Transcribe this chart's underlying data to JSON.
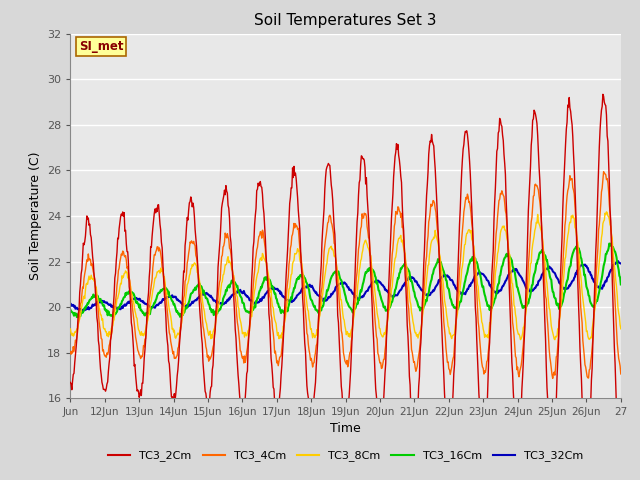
{
  "title": "Soil Temperatures Set 3",
  "xlabel": "Time",
  "ylabel": "Soil Temperature (C)",
  "ylim": [
    16,
    32
  ],
  "yticks": [
    16,
    18,
    20,
    22,
    24,
    26,
    28,
    30,
    32
  ],
  "fig_bg_color": "#d8d8d8",
  "plot_bg_color": "#e8e8e8",
  "annotation_text": "SI_met",
  "annotation_bg": "#ffff99",
  "annotation_border": "#aa6600",
  "annotation_text_color": "#880000",
  "line_colors": {
    "TC3_2Cm": "#cc0000",
    "TC3_4Cm": "#ff6600",
    "TC3_8Cm": "#ffcc00",
    "TC3_16Cm": "#00cc00",
    "TC3_32Cm": "#0000bb"
  },
  "line_widths": {
    "TC3_2Cm": 1.0,
    "TC3_4Cm": 1.0,
    "TC3_8Cm": 1.0,
    "TC3_16Cm": 1.5,
    "TC3_32Cm": 1.5
  },
  "x_tick_labels": [
    "Jun",
    "12Jun",
    "13Jun",
    "14Jun",
    "15Jun",
    "16Jun",
    "17Jun",
    "18Jun",
    "19Jun",
    "20Jun",
    "21Jun",
    "22Jun",
    "23Jun",
    "24Jun",
    "25Jun",
    "26Jun",
    "27"
  ],
  "legend_entries": [
    "TC3_2Cm",
    "TC3_4Cm",
    "TC3_8Cm",
    "TC3_16Cm",
    "TC3_32Cm"
  ],
  "legend_colors": [
    "#cc0000",
    "#ff6600",
    "#ffcc00",
    "#00cc00",
    "#0000bb"
  ]
}
